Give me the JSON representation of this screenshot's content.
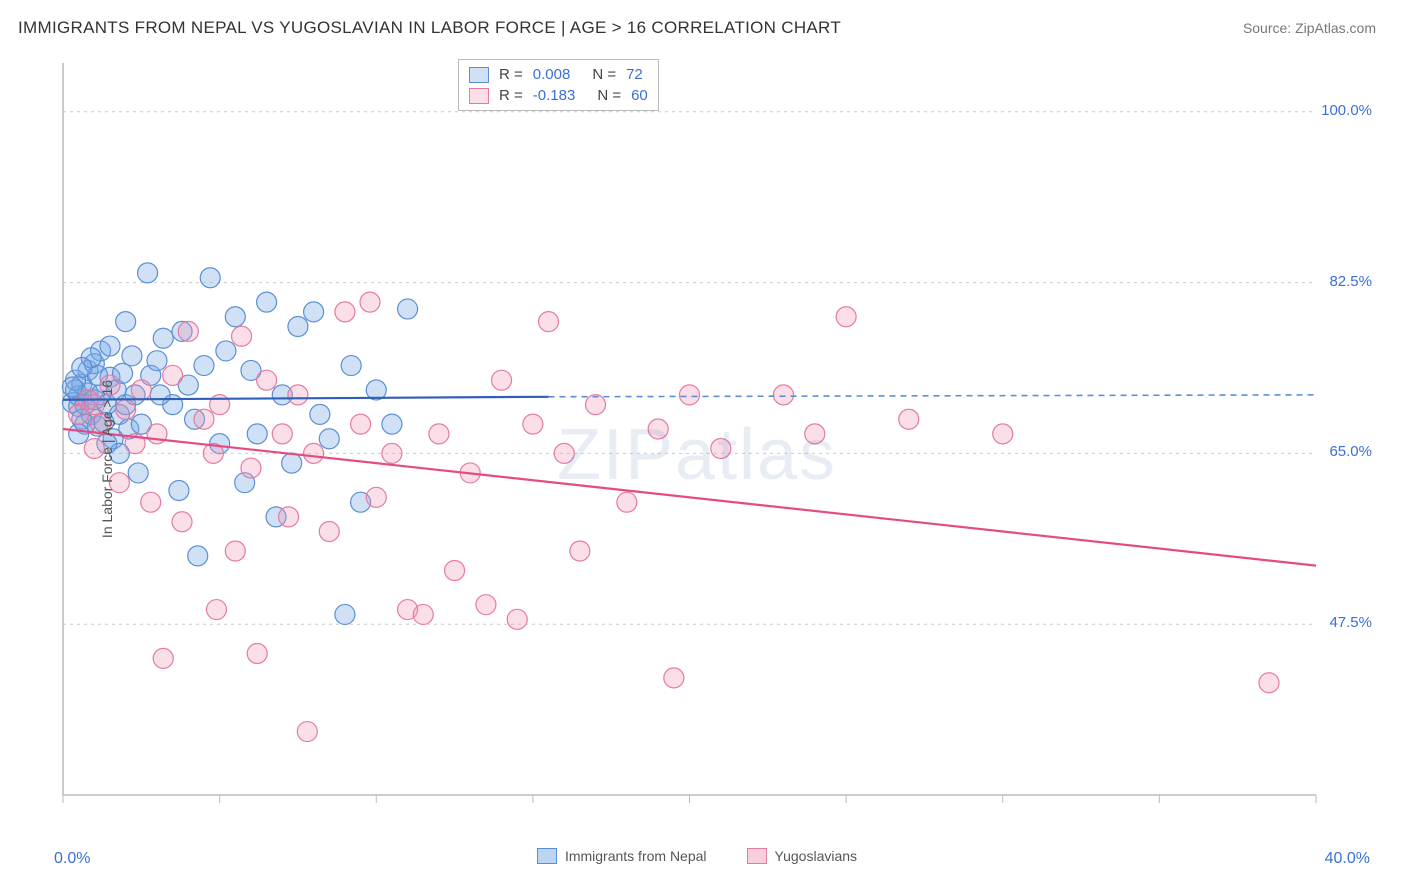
{
  "header": {
    "title": "IMMIGRANTS FROM NEPAL VS YUGOSLAVIAN IN LABOR FORCE | AGE > 16 CORRELATION CHART",
    "source": "Source: ZipAtlas.com"
  },
  "watermark": "ZIPatlas",
  "chart": {
    "type": "scatter",
    "ylabel": "In Labor Force | Age > 16",
    "background_color": "#ffffff",
    "grid_color": "#cccccc",
    "grid_dash": "3,4",
    "axis_color": "#999999",
    "tick_color": "#bbbbbb",
    "xlim": [
      0,
      40
    ],
    "ylim": [
      30,
      105
    ],
    "x_ticks": [
      0,
      5,
      10,
      15,
      20,
      25,
      30,
      35,
      40
    ],
    "y_gridlines": [
      47.5,
      65.0,
      82.5,
      100.0
    ],
    "x_label_min": "0.0%",
    "x_label_max": "40.0%",
    "y_tick_labels": [
      "47.5%",
      "65.0%",
      "82.5%",
      "100.0%"
    ],
    "marker_radius": 10,
    "marker_stroke_width": 1.2,
    "series": [
      {
        "name": "Immigrants from Nepal",
        "fill": "rgba(120,170,230,0.35)",
        "stroke": "#5a8fd6",
        "trend_color": "#2f5fb8",
        "trend_dash_color": "#5a8fd6",
        "R": "0.008",
        "N": "72",
        "trend_y_start": 70.5,
        "trend_y_mid": 70.8,
        "trend_y_end": 71.0,
        "points": [
          [
            0.3,
            70.2
          ],
          [
            0.4,
            71.5
          ],
          [
            0.5,
            69.8
          ],
          [
            0.5,
            70.9
          ],
          [
            0.6,
            72.1
          ],
          [
            0.6,
            68.5
          ],
          [
            0.7,
            70.0
          ],
          [
            0.8,
            71.2
          ],
          [
            0.8,
            73.5
          ],
          [
            0.9,
            69.0
          ],
          [
            1.0,
            70.5
          ],
          [
            1.0,
            74.2
          ],
          [
            1.1,
            67.8
          ],
          [
            1.2,
            71.0
          ],
          [
            1.2,
            75.5
          ],
          [
            1.3,
            68.2
          ],
          [
            1.4,
            70.0
          ],
          [
            1.5,
            72.8
          ],
          [
            1.5,
            76.0
          ],
          [
            1.6,
            66.5
          ],
          [
            1.7,
            71.5
          ],
          [
            1.8,
            69.0
          ],
          [
            1.9,
            73.2
          ],
          [
            2.0,
            70.0
          ],
          [
            2.1,
            67.5
          ],
          [
            2.2,
            75.0
          ],
          [
            2.3,
            71.0
          ],
          [
            2.5,
            68.0
          ],
          [
            2.7,
            83.5
          ],
          [
            2.8,
            73.0
          ],
          [
            3.0,
            74.5
          ],
          [
            3.2,
            76.8
          ],
          [
            3.5,
            70.0
          ],
          [
            3.7,
            61.2
          ],
          [
            3.8,
            77.5
          ],
          [
            4.0,
            72.0
          ],
          [
            4.2,
            68.5
          ],
          [
            4.5,
            74.0
          ],
          [
            4.7,
            83.0
          ],
          [
            5.0,
            66.0
          ],
          [
            5.2,
            75.5
          ],
          [
            5.5,
            79.0
          ],
          [
            5.8,
            62.0
          ],
          [
            6.0,
            73.5
          ],
          [
            6.2,
            67.0
          ],
          [
            6.5,
            80.5
          ],
          [
            6.8,
            58.5
          ],
          [
            7.0,
            71.0
          ],
          [
            7.3,
            64.0
          ],
          [
            7.5,
            78.0
          ],
          [
            8.0,
            79.5
          ],
          [
            8.2,
            69.0
          ],
          [
            8.5,
            66.5
          ],
          [
            9.0,
            48.5
          ],
          [
            9.2,
            74.0
          ],
          [
            9.5,
            60.0
          ],
          [
            10.0,
            71.5
          ],
          [
            10.5,
            68.0
          ],
          [
            11.0,
            79.8
          ],
          [
            4.3,
            54.5
          ],
          [
            2.0,
            78.5
          ],
          [
            1.8,
            65.0
          ],
          [
            2.4,
            63.0
          ],
          [
            3.1,
            71.0
          ],
          [
            0.4,
            72.5
          ],
          [
            0.7,
            68.0
          ],
          [
            1.1,
            73.0
          ],
          [
            1.4,
            66.0
          ],
          [
            0.9,
            74.8
          ],
          [
            0.5,
            67.0
          ],
          [
            0.3,
            71.8
          ],
          [
            0.6,
            73.8
          ]
        ]
      },
      {
        "name": "Yugoslavians",
        "fill": "rgba(240,150,180,0.3)",
        "stroke": "#e67aa0",
        "trend_color": "#e54b82",
        "R": "-0.183",
        "N": "60",
        "trend_y_start": 67.5,
        "trend_y_end": 53.5,
        "points": [
          [
            0.5,
            69.0
          ],
          [
            0.8,
            70.5
          ],
          [
            1.0,
            65.5
          ],
          [
            1.2,
            68.0
          ],
          [
            1.5,
            72.0
          ],
          [
            1.8,
            62.0
          ],
          [
            2.0,
            69.5
          ],
          [
            2.3,
            66.0
          ],
          [
            2.5,
            71.5
          ],
          [
            2.8,
            60.0
          ],
          [
            3.0,
            67.0
          ],
          [
            3.5,
            73.0
          ],
          [
            3.8,
            58.0
          ],
          [
            4.0,
            77.5
          ],
          [
            4.5,
            68.5
          ],
          [
            4.8,
            65.0
          ],
          [
            5.0,
            70.0
          ],
          [
            5.5,
            55.0
          ],
          [
            5.7,
            77.0
          ],
          [
            6.0,
            63.5
          ],
          [
            6.2,
            44.5
          ],
          [
            6.5,
            72.5
          ],
          [
            7.0,
            67.0
          ],
          [
            7.2,
            58.5
          ],
          [
            7.5,
            71.0
          ],
          [
            7.8,
            36.5
          ],
          [
            8.0,
            65.0
          ],
          [
            8.5,
            57.0
          ],
          [
            9.0,
            79.5
          ],
          [
            9.5,
            68.0
          ],
          [
            9.8,
            80.5
          ],
          [
            10.0,
            60.5
          ],
          [
            10.5,
            65.0
          ],
          [
            11.0,
            49.0
          ],
          [
            11.5,
            48.5
          ],
          [
            12.0,
            67.0
          ],
          [
            12.5,
            53.0
          ],
          [
            13.0,
            63.0
          ],
          [
            13.5,
            49.5
          ],
          [
            14.0,
            72.5
          ],
          [
            14.5,
            48.0
          ],
          [
            15.0,
            68.0
          ],
          [
            15.5,
            78.5
          ],
          [
            16.0,
            65.0
          ],
          [
            16.5,
            55.0
          ],
          [
            17.0,
            70.0
          ],
          [
            18.0,
            60.0
          ],
          [
            19.0,
            67.5
          ],
          [
            19.5,
            42.0
          ],
          [
            20.0,
            71.0
          ],
          [
            21.0,
            65.5
          ],
          [
            23.0,
            71.0
          ],
          [
            24.0,
            67.0
          ],
          [
            25.0,
            79.0
          ],
          [
            27.0,
            68.5
          ],
          [
            30.0,
            67.0
          ],
          [
            38.5,
            41.5
          ],
          [
            3.2,
            44.0
          ],
          [
            4.9,
            49.0
          ],
          [
            1.0,
            70.0
          ]
        ]
      }
    ]
  },
  "bottom_legend": {
    "items": [
      {
        "label": "Immigrants from Nepal",
        "fill": "rgba(120,170,230,0.5)",
        "stroke": "#5a8fd6"
      },
      {
        "label": "Yugoslavians",
        "fill": "rgba(240,150,180,0.45)",
        "stroke": "#e67aa0"
      }
    ]
  }
}
